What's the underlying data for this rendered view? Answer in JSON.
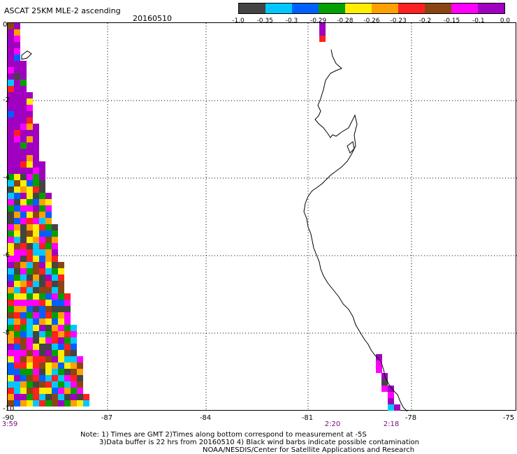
{
  "title": "ASCAT 25KM MLE-2 ascending",
  "date": "20160510",
  "colorbar": {
    "colors": [
      "#444444",
      "#00c8ff",
      "#0060ff",
      "#00a000",
      "#ffee00",
      "#ffa000",
      "#ff2020",
      "#8b4513",
      "#ff00ff",
      "#a000c0"
    ],
    "labels": [
      "-1.0",
      "-0.35",
      "-0.3",
      "-0.29",
      "-0.28",
      "-0.26",
      "-0.23",
      "-0.2",
      "-0.15",
      "-0.1",
      "0.0"
    ]
  },
  "axes": {
    "x_ticks": [
      "-90",
      "-87",
      "-84",
      "-81",
      "-78",
      "-75"
    ],
    "y_ticks": [
      "0",
      "-2",
      "-4",
      "-6",
      "-8",
      "-10"
    ]
  },
  "pass_times": [
    "3:59",
    "2:20",
    "2:18"
  ],
  "notes": {
    "line1": "Note: 1) Times are GMT 2)Times along bottom correspond to measurement at -5S",
    "line2": "3)Data buffer is 22 hrs from 20160510 4) Black wind barbs indicate possible contamination",
    "line3": "NOAA/NESDIS/Center for Satellite Applications and Research"
  }
}
